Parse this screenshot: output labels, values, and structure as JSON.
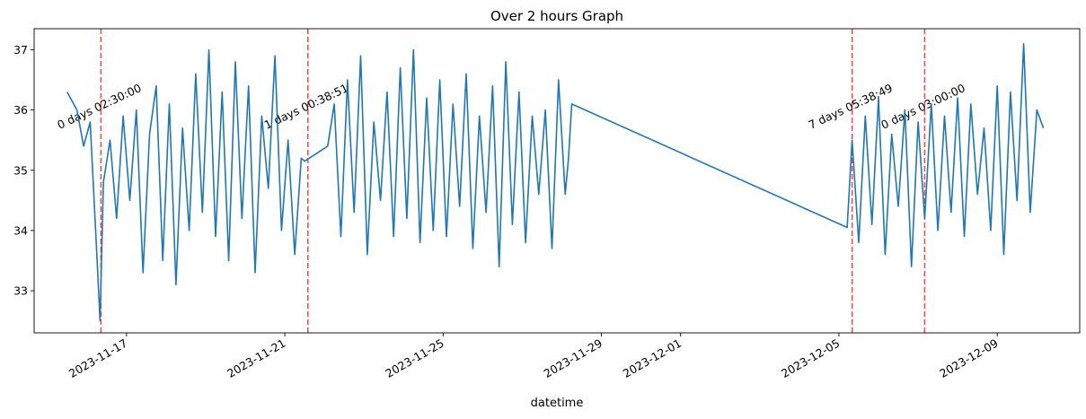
{
  "chart_data": {
    "type": "line",
    "title": "Over 2 hours Graph",
    "xlabel": "datetime",
    "ylabel": "",
    "x_range": [
      "2023-11-14T16:00",
      "2023-12-11T02:00"
    ],
    "ylim": [
      32.3,
      37.35
    ],
    "yticks": [
      33,
      34,
      35,
      36,
      37
    ],
    "xticks": [
      {
        "date": "2023-11-17",
        "label": "2023-11-17"
      },
      {
        "date": "2023-11-21",
        "label": "2023-11-21"
      },
      {
        "date": "2023-11-25",
        "label": "2023-11-25"
      },
      {
        "date": "2023-11-29",
        "label": "2023-11-29"
      },
      {
        "date": "2023-12-01",
        "label": "2023-12-01"
      },
      {
        "date": "2023-12-05",
        "label": "2023-12-05"
      },
      {
        "date": "2023-12-09",
        "label": "2023-12-09"
      }
    ],
    "grid": false,
    "legend": "none",
    "series": [
      {
        "color": "#1f77b4",
        "points": [
          [
            "2023-11-15T12:00",
            36.3
          ],
          [
            "2023-11-15T18:00",
            36.0
          ],
          [
            "2023-11-15T22:00",
            35.4
          ],
          [
            "2023-11-16T02:00",
            35.8
          ],
          [
            "2023-11-16T06:00",
            33.6
          ],
          [
            "2023-11-16T08:00",
            32.5
          ],
          [
            "2023-11-16T10:00",
            34.8
          ],
          [
            "2023-11-16T14:00",
            35.5
          ],
          [
            "2023-11-16T18:00",
            34.2
          ],
          [
            "2023-11-16T22:00",
            35.9
          ],
          [
            "2023-11-17T02:00",
            34.5
          ],
          [
            "2023-11-17T06:00",
            36.0
          ],
          [
            "2023-11-17T10:00",
            33.3
          ],
          [
            "2023-11-17T14:00",
            35.6
          ],
          [
            "2023-11-17T18:00",
            36.4
          ],
          [
            "2023-11-17T22:00",
            33.5
          ],
          [
            "2023-11-18T02:00",
            36.1
          ],
          [
            "2023-11-18T06:00",
            33.1
          ],
          [
            "2023-11-18T10:00",
            35.7
          ],
          [
            "2023-11-18T14:00",
            34.0
          ],
          [
            "2023-11-18T18:00",
            36.6
          ],
          [
            "2023-11-18T22:00",
            34.3
          ],
          [
            "2023-11-19T02:00",
            37.0
          ],
          [
            "2023-11-19T06:00",
            33.9
          ],
          [
            "2023-11-19T10:00",
            36.3
          ],
          [
            "2023-11-19T14:00",
            33.5
          ],
          [
            "2023-11-19T18:00",
            36.8
          ],
          [
            "2023-11-19T22:00",
            34.2
          ],
          [
            "2023-11-20T02:00",
            36.4
          ],
          [
            "2023-11-20T06:00",
            33.3
          ],
          [
            "2023-11-20T10:00",
            35.9
          ],
          [
            "2023-11-20T14:00",
            34.7
          ],
          [
            "2023-11-20T18:00",
            36.9
          ],
          [
            "2023-11-20T22:00",
            34.0
          ],
          [
            "2023-11-21T02:00",
            35.5
          ],
          [
            "2023-11-21T06:00",
            33.6
          ],
          [
            "2023-11-21T10:00",
            35.2
          ],
          [
            "2023-11-21T12:00",
            35.15
          ],
          [
            "2023-11-22T02:00",
            35.4
          ],
          [
            "2023-11-22T06:00",
            36.1
          ],
          [
            "2023-11-22T10:00",
            33.9
          ],
          [
            "2023-11-22T14:00",
            36.5
          ],
          [
            "2023-11-22T18:00",
            34.3
          ],
          [
            "2023-11-22T22:00",
            36.9
          ],
          [
            "2023-11-23T02:00",
            33.6
          ],
          [
            "2023-11-23T06:00",
            35.8
          ],
          [
            "2023-11-23T10:00",
            34.5
          ],
          [
            "2023-11-23T14:00",
            36.3
          ],
          [
            "2023-11-23T18:00",
            33.9
          ],
          [
            "2023-11-23T22:00",
            36.7
          ],
          [
            "2023-11-24T02:00",
            34.2
          ],
          [
            "2023-11-24T06:00",
            37.0
          ],
          [
            "2023-11-24T10:00",
            33.8
          ],
          [
            "2023-11-24T14:00",
            36.2
          ],
          [
            "2023-11-24T18:00",
            34.0
          ],
          [
            "2023-11-24T22:00",
            36.5
          ],
          [
            "2023-11-25T02:00",
            33.9
          ],
          [
            "2023-11-25T06:00",
            36.1
          ],
          [
            "2023-11-25T10:00",
            34.4
          ],
          [
            "2023-11-25T14:00",
            36.6
          ],
          [
            "2023-11-25T18:00",
            33.7
          ],
          [
            "2023-11-25T22:00",
            35.9
          ],
          [
            "2023-11-26T02:00",
            34.3
          ],
          [
            "2023-11-26T06:00",
            36.4
          ],
          [
            "2023-11-26T10:00",
            33.4
          ],
          [
            "2023-11-26T14:00",
            36.8
          ],
          [
            "2023-11-26T18:00",
            34.1
          ],
          [
            "2023-11-26T22:00",
            36.3
          ],
          [
            "2023-11-27T02:00",
            33.8
          ],
          [
            "2023-11-27T06:00",
            35.9
          ],
          [
            "2023-11-27T10:00",
            34.6
          ],
          [
            "2023-11-27T14:00",
            36.0
          ],
          [
            "2023-11-27T18:00",
            33.7
          ],
          [
            "2023-11-27T22:00",
            36.5
          ],
          [
            "2023-11-28T02:00",
            34.6
          ],
          [
            "2023-11-28T04:00",
            35.2
          ],
          [
            "2023-11-28T06:00",
            36.1
          ],
          [
            "2023-12-05T05:00",
            34.05
          ],
          [
            "2023-12-05T08:00",
            35.5
          ],
          [
            "2023-12-05T12:00",
            33.8
          ],
          [
            "2023-12-05T16:00",
            35.9
          ],
          [
            "2023-12-05T20:00",
            34.1
          ],
          [
            "2023-12-06T00:00",
            36.2
          ],
          [
            "2023-12-06T04:00",
            33.6
          ],
          [
            "2023-12-06T08:00",
            35.6
          ],
          [
            "2023-12-06T12:00",
            34.4
          ],
          [
            "2023-12-06T16:00",
            36.0
          ],
          [
            "2023-12-06T20:00",
            33.4
          ],
          [
            "2023-12-07T00:00",
            35.8
          ],
          [
            "2023-12-07T04:00",
            34.2
          ],
          [
            "2023-12-07T08:00",
            36.1
          ],
          [
            "2023-12-07T12:00",
            34.0
          ],
          [
            "2023-12-07T16:00",
            35.9
          ],
          [
            "2023-12-07T20:00",
            34.3
          ],
          [
            "2023-12-08T00:00",
            36.2
          ],
          [
            "2023-12-08T04:00",
            33.9
          ],
          [
            "2023-12-08T08:00",
            36.1
          ],
          [
            "2023-12-08T12:00",
            34.6
          ],
          [
            "2023-12-08T16:00",
            35.7
          ],
          [
            "2023-12-08T20:00",
            34.0
          ],
          [
            "2023-12-09T00:00",
            36.4
          ],
          [
            "2023-12-09T04:00",
            33.6
          ],
          [
            "2023-12-09T08:00",
            36.3
          ],
          [
            "2023-12-09T12:00",
            34.5
          ],
          [
            "2023-12-09T16:00",
            37.1
          ],
          [
            "2023-12-09T20:00",
            34.3
          ],
          [
            "2023-12-10T00:00",
            36.0
          ],
          [
            "2023-12-10T04:00",
            35.7
          ]
        ]
      }
    ],
    "annotations": [
      {
        "date": "2023-11-16T08:30",
        "label": "0 days 02:30:00",
        "color": "#ff4444"
      },
      {
        "date": "2023-11-21T14:00",
        "label": "1 days 00:38:51",
        "color": "#ff4444"
      },
      {
        "date": "2023-12-05T08:00",
        "label": "7 days 05:38:49",
        "color": "#ff4444"
      },
      {
        "date": "2023-12-07T04:00",
        "label": "0 days 03:00:00",
        "color": "#ff4444"
      }
    ]
  }
}
